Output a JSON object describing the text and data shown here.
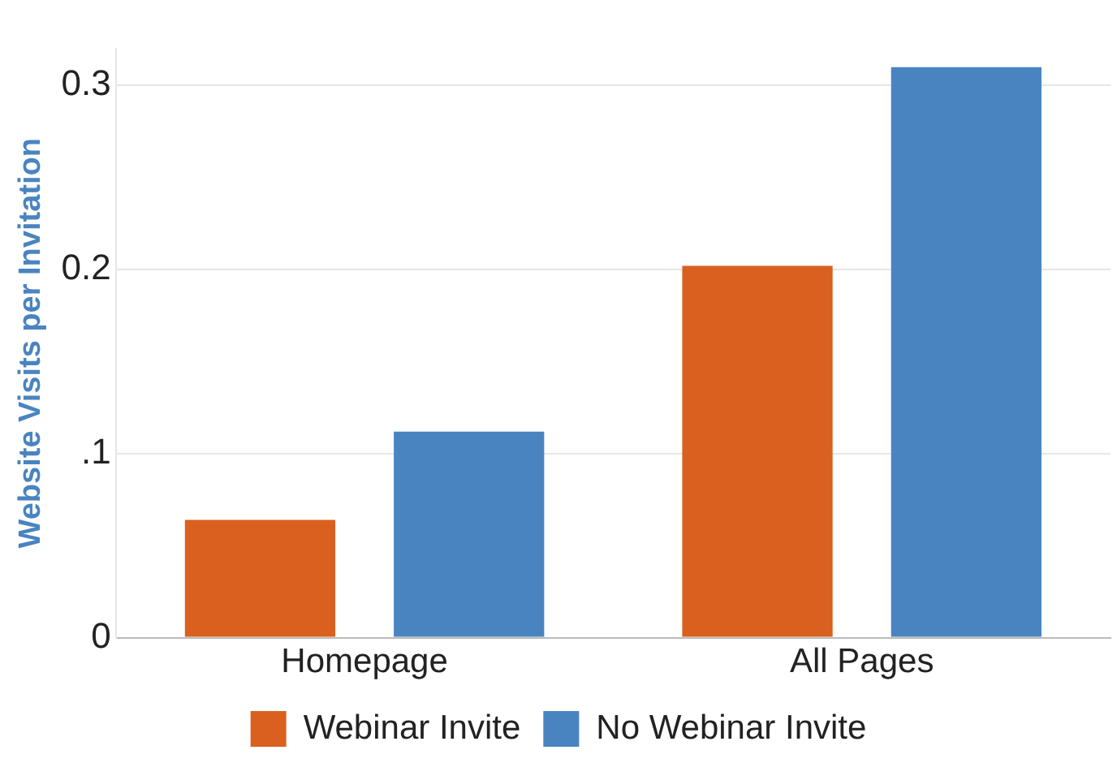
{
  "chart_data": {
    "type": "bar",
    "ylabel": "Website Visits per Invitation",
    "categories": [
      "Homepage",
      "All Pages"
    ],
    "series": [
      {
        "name": "Webinar Invite",
        "color": "#d9601f",
        "values": [
          0.064,
          0.202
        ]
      },
      {
        "name": "No Webinar Invite",
        "color": "#4a84c0",
        "values": [
          0.112,
          0.31
        ]
      }
    ],
    "ylim": [
      0,
      0.32
    ],
    "yticks": [
      {
        "value": 0,
        "label": "0"
      },
      {
        "value": 0.1,
        "label": ".1"
      },
      {
        "value": 0.2,
        "label": "0.2"
      },
      {
        "value": 0.3,
        "label": "0.3"
      }
    ],
    "grid": "y",
    "legend": "bottom"
  }
}
